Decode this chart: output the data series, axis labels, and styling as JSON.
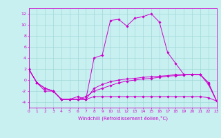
{
  "xlabel": "Windchill (Refroidissement éolien,°C)",
  "xlim": [
    0,
    23
  ],
  "ylim": [
    -5,
    13
  ],
  "yticks": [
    -4,
    -2,
    0,
    2,
    4,
    6,
    8,
    10,
    12
  ],
  "xticks": [
    0,
    1,
    2,
    3,
    4,
    5,
    6,
    7,
    8,
    9,
    10,
    11,
    12,
    13,
    14,
    15,
    16,
    17,
    18,
    19,
    20,
    21,
    22,
    23
  ],
  "bg_color": "#c8f0f0",
  "line_color": "#cc00cc",
  "grid_color": "#a0d8d8",
  "line_series": [
    [
      2.0,
      -0.5,
      -1.5,
      -2.0,
      -3.5,
      -3.5,
      -3.5,
      -3.5,
      -3.0,
      -3.0,
      -3.0,
      -3.0,
      -3.0,
      -3.0,
      -3.0,
      -3.0,
      -3.0,
      -3.0,
      -3.0,
      -3.0,
      -3.0,
      -3.0,
      -3.2,
      -3.8
    ],
    [
      2.0,
      -0.5,
      -1.5,
      -2.0,
      -3.5,
      -3.5,
      -3.0,
      -3.5,
      4.0,
      4.5,
      10.8,
      11.0,
      9.8,
      11.2,
      11.5,
      12.0,
      10.5,
      5.0,
      3.0,
      1.0,
      1.0,
      1.0,
      -0.8,
      -3.8
    ],
    [
      2.0,
      -0.5,
      -2.0,
      -2.0,
      -3.5,
      -3.5,
      -3.5,
      -3.0,
      -2.0,
      -1.5,
      -1.0,
      -0.5,
      -0.2,
      0.0,
      0.2,
      0.3,
      0.5,
      0.7,
      0.8,
      0.9,
      1.0,
      1.0,
      -0.5,
      -3.8
    ],
    [
      2.0,
      -0.5,
      -1.5,
      -2.0,
      -3.5,
      -3.5,
      -3.5,
      -3.5,
      -1.5,
      -0.8,
      -0.3,
      0.0,
      0.2,
      0.3,
      0.5,
      0.6,
      0.7,
      0.8,
      1.0,
      1.0,
      1.0,
      1.0,
      -0.5,
      -3.8
    ]
  ]
}
